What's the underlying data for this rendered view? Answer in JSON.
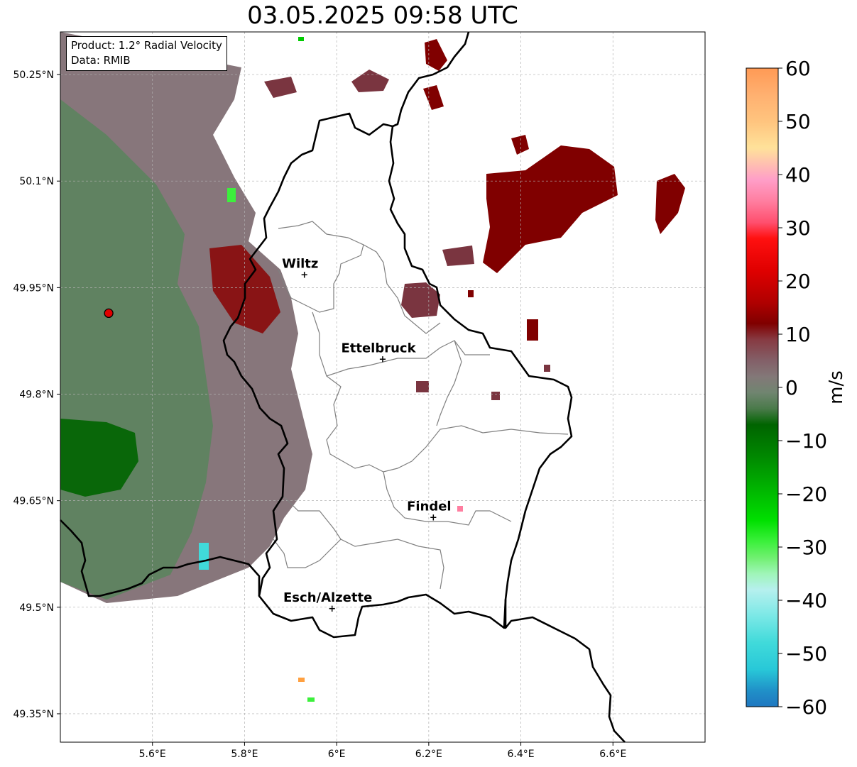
{
  "title": "03.05.2025 09:58 UTC",
  "info": {
    "product": "Product: 1.2° Radial Velocity",
    "data": "Data: RMIB"
  },
  "map": {
    "lon_range": [
      5.4,
      6.8
    ],
    "lat_range": [
      49.31,
      50.31
    ],
    "lon_ticks": [
      {
        "value": 5.6,
        "label": "5.6°E"
      },
      {
        "value": 5.8,
        "label": "5.8°E"
      },
      {
        "value": 6.0,
        "label": "6°E"
      },
      {
        "value": 6.2,
        "label": "6.2°E"
      },
      {
        "value": 6.4,
        "label": "6.4°E"
      },
      {
        "value": 6.6,
        "label": "6.6°E"
      }
    ],
    "lat_ticks": [
      {
        "value": 50.25,
        "label": "50.25°N"
      },
      {
        "value": 50.1,
        "label": "50.1°N"
      },
      {
        "value": 49.95,
        "label": "49.95°N"
      },
      {
        "value": 49.8,
        "label": "49.8°N"
      },
      {
        "value": 49.65,
        "label": "49.65°N"
      },
      {
        "value": 49.5,
        "label": "49.5°N"
      },
      {
        "value": 49.35,
        "label": "49.35°N"
      }
    ],
    "cities": [
      {
        "name": "Wiltz",
        "lon": 5.93,
        "lat": 49.968
      },
      {
        "name": "Ettelbruck",
        "lon": 6.1,
        "lat": 49.849
      },
      {
        "name": "Findel",
        "lon": 6.21,
        "lat": 49.626
      },
      {
        "name": "Esch/Alzette",
        "lon": 5.99,
        "lat": 49.498
      }
    ],
    "radar_site": {
      "lon": 5.505,
      "lat": 49.914
    },
    "colors": {
      "border": "#000000",
      "canton": "#808080",
      "grid": "#b0b0b0",
      "radar_site": "#e00000"
    }
  },
  "colorbar": {
    "label": "m/s",
    "min": -60,
    "max": 60,
    "ticks": [
      {
        "value": 60,
        "label": "60"
      },
      {
        "value": 50,
        "label": "50"
      },
      {
        "value": 40,
        "label": "40"
      },
      {
        "value": 30,
        "label": "30"
      },
      {
        "value": 20,
        "label": "20"
      },
      {
        "value": 10,
        "label": "10"
      },
      {
        "value": 0,
        "label": "0"
      },
      {
        "value": -10,
        "label": "−10"
      },
      {
        "value": -20,
        "label": "−20"
      },
      {
        "value": -30,
        "label": "−30"
      },
      {
        "value": -40,
        "label": "−40"
      },
      {
        "value": -50,
        "label": "−50"
      },
      {
        "value": -60,
        "label": "−60"
      }
    ],
    "stops": [
      {
        "value": 60,
        "color": "#ff9a55"
      },
      {
        "value": 55,
        "color": "#ffb070"
      },
      {
        "value": 50,
        "color": "#ffc47e"
      },
      {
        "value": 45,
        "color": "#ffe29a"
      },
      {
        "value": 42,
        "color": "#ffc0b0"
      },
      {
        "value": 39,
        "color": "#ff9ec8"
      },
      {
        "value": 35,
        "color": "#ff7ea0"
      },
      {
        "value": 31,
        "color": "#ff4f6e"
      },
      {
        "value": 28,
        "color": "#ff1010"
      },
      {
        "value": 22,
        "color": "#e00000"
      },
      {
        "value": 16,
        "color": "#b00000"
      },
      {
        "value": 12,
        "color": "#800000"
      },
      {
        "value": 9,
        "color": "#873a42"
      },
      {
        "value": 5,
        "color": "#836068"
      },
      {
        "value": 2,
        "color": "#837878"
      },
      {
        "value": -1,
        "color": "#708570"
      },
      {
        "value": -4,
        "color": "#4a7a4a"
      },
      {
        "value": -7,
        "color": "#006400"
      },
      {
        "value": -13,
        "color": "#008800"
      },
      {
        "value": -20,
        "color": "#00bb00"
      },
      {
        "value": -25,
        "color": "#00e000"
      },
      {
        "value": -29,
        "color": "#3cf03c"
      },
      {
        "value": -32,
        "color": "#70f070"
      },
      {
        "value": -35,
        "color": "#9ff5b8"
      },
      {
        "value": -38,
        "color": "#b6f0ee"
      },
      {
        "value": -43,
        "color": "#7ae8e6"
      },
      {
        "value": -48,
        "color": "#40dada"
      },
      {
        "value": -53,
        "color": "#28c8d8"
      },
      {
        "value": -57,
        "color": "#2090c8"
      },
      {
        "value": -60,
        "color": "#1f77c0"
      }
    ]
  }
}
